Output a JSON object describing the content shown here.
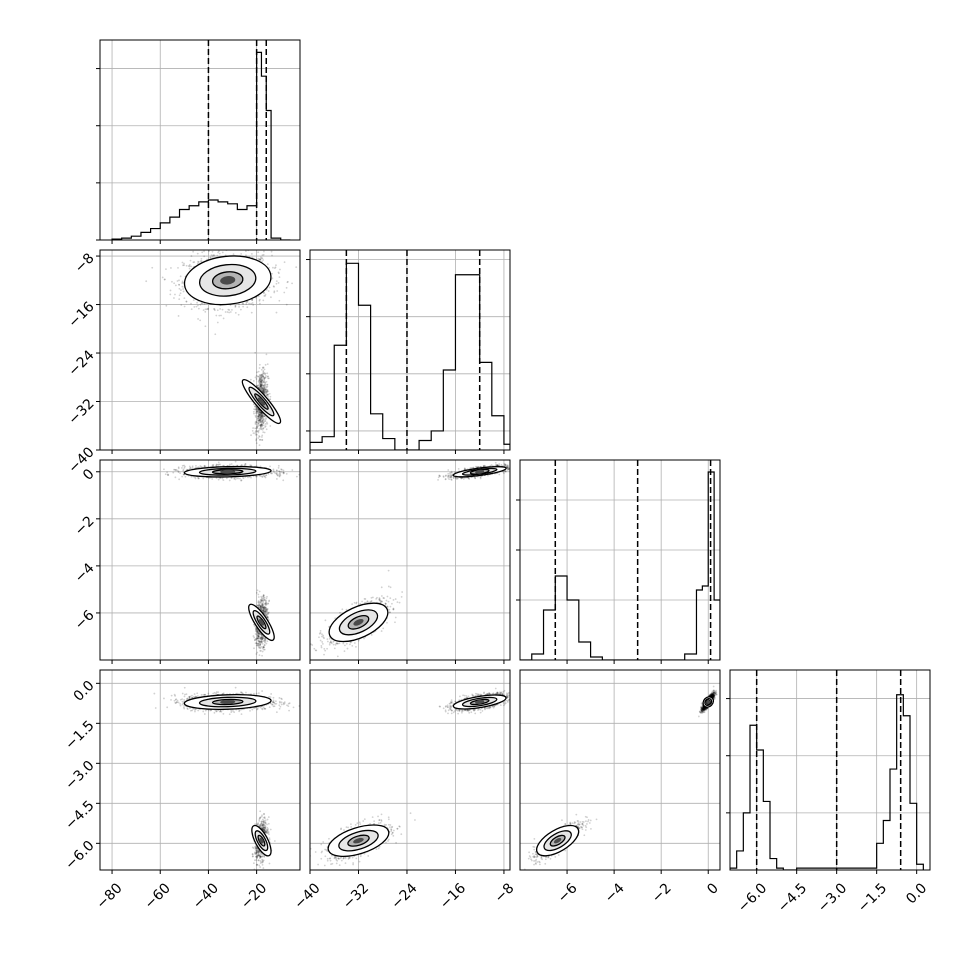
{
  "chart_data": {
    "type": "corner",
    "title": "",
    "grid": true,
    "dimensions": [
      {
        "range": [
          -85,
          -2
        ],
        "ticks": [
          -80,
          -60,
          -40,
          -20
        ],
        "tick_labels": [
          "−80",
          "−60",
          "−40",
          "−20"
        ],
        "quantiles": [
          -40,
          -20,
          -16
        ],
        "hist": {
          "edges": [
            -80,
            -76,
            -72,
            -68,
            -64,
            -60,
            -56,
            -52,
            -48,
            -44,
            -40,
            -36,
            -32,
            -28,
            -24,
            -20,
            -18,
            -16,
            -14,
            -12,
            -10,
            -6
          ],
          "heights": [
            0.005,
            0.01,
            0.02,
            0.04,
            0.06,
            0.09,
            0.12,
            0.16,
            0.18,
            0.2,
            0.21,
            0.2,
            0.19,
            0.16,
            0.18,
            0.985,
            0.86,
            0.68,
            0.01,
            0.01,
            0.0
          ],
          "ymax": 1.05,
          "yticks": [
            0.0,
            0.3,
            0.6,
            0.9
          ]
        }
      },
      {
        "range": [
          -40,
          -7
        ],
        "ticks": [
          -40,
          -32,
          -24,
          -16,
          -8
        ],
        "tick_labels": [
          "−40",
          "−32",
          "−24",
          "−16",
          "−8"
        ],
        "quantiles": [
          -34,
          -24,
          -12
        ],
        "hist": {
          "edges": [
            -40,
            -38,
            -36,
            -34,
            -32,
            -30,
            -28,
            -26,
            -24,
            -22,
            -20,
            -18,
            -16,
            -14,
            -12,
            -10,
            -8,
            -7
          ],
          "heights": [
            0.04,
            0.07,
            0.55,
            0.98,
            0.76,
            0.19,
            0.06,
            0.0,
            0.0,
            0.05,
            0.1,
            0.42,
            0.92,
            0.92,
            0.46,
            0.18,
            0.03
          ],
          "ymax": 1.05,
          "yticks": [
            0.1,
            0.4,
            0.7,
            1.0
          ]
        }
      },
      {
        "range": [
          -8,
          0.5
        ],
        "ticks": [
          -6,
          -4,
          -2,
          0
        ],
        "tick_labels": [
          "−6",
          "−4",
          "−2",
          "0"
        ],
        "quantiles": [
          -6.5,
          -3,
          0.1
        ],
        "hist": {
          "edges": [
            -8,
            -7.5,
            -7,
            -6.5,
            -6,
            -5.5,
            -5,
            -4.5,
            -1,
            -0.5,
            -0.25,
            0,
            0.25,
            0.5
          ],
          "heights": [
            0.0,
            0.03,
            0.25,
            0.42,
            0.3,
            0.09,
            0.015,
            0.0,
            0.03,
            0.35,
            0.37,
            0.94,
            0.3
          ],
          "ymax": 1.0,
          "yticks": [
            0.3,
            0.55,
            0.8
          ]
        }
      },
      {
        "range": [
          -7,
          0.5
        ],
        "ticks": [
          -6.0,
          -4.5,
          -3.0,
          -1.5,
          0.0
        ],
        "tick_labels": [
          "−6.0",
          "−4.5",
          "−3.0",
          "−1.5",
          "0.0"
        ],
        "yticks": [
          0.0,
          -1.5,
          -3.0,
          -4.5,
          -6.0
        ],
        "ytick_labels": [
          "0.0",
          "−1.5",
          "−3.0",
          "−4.5",
          "−6.0"
        ],
        "quantiles": [
          -6,
          -3,
          -0.6
        ],
        "hist": {
          "edges": [
            -7,
            -6.75,
            -6.5,
            -6.25,
            -6,
            -5.75,
            -5.5,
            -5.25,
            -5,
            -4.75,
            -4.5,
            -1.5,
            -1.25,
            -1,
            -0.75,
            -0.5,
            -0.25,
            0,
            0.25
          ],
          "heights": [
            0.01,
            0.1,
            0.3,
            0.76,
            0.63,
            0.36,
            0.06,
            0.01,
            0.0,
            0.0,
            0.01,
            0.14,
            0.26,
            0.53,
            0.92,
            0.81,
            0.35,
            0.03
          ],
          "ymax": 1.05,
          "yticks": [
            0.3,
            0.6,
            0.9
          ]
        }
      }
    ],
    "clusters": [
      {
        "mean": [
          -32,
          -12,
          0.0,
          -0.7
        ],
        "sd": [
          9,
          2.2,
          0.12,
          0.15
        ],
        "weight": 1.0
      },
      {
        "mean": [
          -18,
          -32,
          -6.4,
          -5.9
        ],
        "sd": [
          1.3,
          2.6,
          0.5,
          0.35
        ],
        "weight": 0.55
      }
    ],
    "correlation": {
      "0-1": 0.2,
      "0-2": 0.0,
      "0-3": 0.0,
      "1-2": 0.7,
      "1-3": 0.6,
      "2-3": 0.85
    }
  }
}
